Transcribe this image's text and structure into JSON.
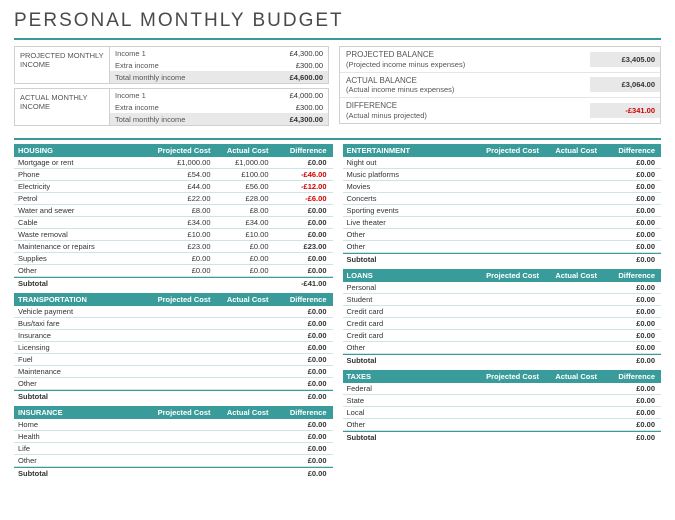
{
  "title": "PERSONAL MONTHLY BUDGET",
  "colors": {
    "accent": "#3a9b9b",
    "negative": "#d00000",
    "shade": "#e8e8e8"
  },
  "projected_income": {
    "label": "PROJECTED MONTHLY INCOME",
    "rows": [
      {
        "k": "Income 1",
        "v": "£4,300.00"
      },
      {
        "k": "Extra income",
        "v": "£300.00"
      }
    ],
    "total": {
      "k": "Total monthly income",
      "v": "£4,600.00"
    }
  },
  "actual_income": {
    "label": "ACTUAL MONTHLY INCOME",
    "rows": [
      {
        "k": "Income 1",
        "v": "£4,000.00"
      },
      {
        "k": "Extra income",
        "v": "£300.00"
      }
    ],
    "total": {
      "k": "Total monthly income",
      "v": "£4,300.00"
    }
  },
  "balances": [
    {
      "title": "PROJECTED BALANCE",
      "sub": "(Projected income minus expenses)",
      "value": "£3,405.00",
      "neg": false
    },
    {
      "title": "ACTUAL BALANCE",
      "sub": "(Actual income minus expenses)",
      "value": "£3,064.00",
      "neg": false
    },
    {
      "title": "DIFFERENCE",
      "sub": "(Actual minus projected)",
      "value": "-£341.00",
      "neg": true
    }
  ],
  "col_headers": {
    "proj": "Projected Cost",
    "act": "Actual Cost",
    "diff": "Difference"
  },
  "left_sections": [
    {
      "name": "HOUSING",
      "rows": [
        {
          "n": "Mortgage or rent",
          "p": "£1,000.00",
          "a": "£1,000.00",
          "d": "£0.00"
        },
        {
          "n": "Phone",
          "p": "£54.00",
          "a": "£100.00",
          "d": "-£46.00",
          "neg": true
        },
        {
          "n": "Electricity",
          "p": "£44.00",
          "a": "£56.00",
          "d": "-£12.00",
          "neg": true
        },
        {
          "n": "Petrol",
          "p": "£22.00",
          "a": "£28.00",
          "d": "-£6.00",
          "neg": true
        },
        {
          "n": "Water and sewer",
          "p": "£8.00",
          "a": "£8.00",
          "d": "£0.00"
        },
        {
          "n": "Cable",
          "p": "£34.00",
          "a": "£34.00",
          "d": "£0.00"
        },
        {
          "n": "Waste removal",
          "p": "£10.00",
          "a": "£10.00",
          "d": "£0.00"
        },
        {
          "n": "Maintenance or repairs",
          "p": "£23.00",
          "a": "£0.00",
          "d": "£23.00"
        },
        {
          "n": "Supplies",
          "p": "£0.00",
          "a": "£0.00",
          "d": "£0.00"
        },
        {
          "n": "Other",
          "p": "£0.00",
          "a": "£0.00",
          "d": "£0.00"
        }
      ],
      "subtotal": {
        "n": "Subtotal",
        "d": "-£41.00"
      }
    },
    {
      "name": "TRANSPORTATION",
      "rows": [
        {
          "n": "Vehicle payment",
          "p": "",
          "a": "",
          "d": "£0.00"
        },
        {
          "n": "Bus/taxi fare",
          "p": "",
          "a": "",
          "d": "£0.00"
        },
        {
          "n": "Insurance",
          "p": "",
          "a": "",
          "d": "£0.00"
        },
        {
          "n": "Licensing",
          "p": "",
          "a": "",
          "d": "£0.00"
        },
        {
          "n": "Fuel",
          "p": "",
          "a": "",
          "d": "£0.00"
        },
        {
          "n": "Maintenance",
          "p": "",
          "a": "",
          "d": "£0.00"
        },
        {
          "n": "Other",
          "p": "",
          "a": "",
          "d": "£0.00"
        }
      ],
      "subtotal": {
        "n": "Subtotal",
        "d": "£0.00"
      }
    },
    {
      "name": "INSURANCE",
      "rows": [
        {
          "n": "Home",
          "p": "",
          "a": "",
          "d": "£0.00"
        },
        {
          "n": "Health",
          "p": "",
          "a": "",
          "d": "£0.00"
        },
        {
          "n": "Life",
          "p": "",
          "a": "",
          "d": "£0.00"
        },
        {
          "n": "Other",
          "p": "",
          "a": "",
          "d": "£0.00"
        }
      ],
      "subtotal": {
        "n": "Subtotal",
        "d": "£0.00"
      }
    }
  ],
  "right_sections": [
    {
      "name": "ENTERTAINMENT",
      "rows": [
        {
          "n": "Night out",
          "p": "",
          "a": "",
          "d": "£0.00"
        },
        {
          "n": "Music platforms",
          "p": "",
          "a": "",
          "d": "£0.00"
        },
        {
          "n": "Movies",
          "p": "",
          "a": "",
          "d": "£0.00"
        },
        {
          "n": "Concerts",
          "p": "",
          "a": "",
          "d": "£0.00"
        },
        {
          "n": "Sporting events",
          "p": "",
          "a": "",
          "d": "£0.00"
        },
        {
          "n": "Live theater",
          "p": "",
          "a": "",
          "d": "£0.00"
        },
        {
          "n": "Other",
          "p": "",
          "a": "",
          "d": "£0.00"
        },
        {
          "n": "Other",
          "p": "",
          "a": "",
          "d": "£0.00"
        }
      ],
      "subtotal": {
        "n": "Subtotal",
        "d": "£0.00"
      }
    },
    {
      "name": "LOANS",
      "rows": [
        {
          "n": "Personal",
          "p": "",
          "a": "",
          "d": "£0.00"
        },
        {
          "n": "Student",
          "p": "",
          "a": "",
          "d": "£0.00"
        },
        {
          "n": "Credit card",
          "p": "",
          "a": "",
          "d": "£0.00"
        },
        {
          "n": "Credit card",
          "p": "",
          "a": "",
          "d": "£0.00"
        },
        {
          "n": "Credit card",
          "p": "",
          "a": "",
          "d": "£0.00"
        },
        {
          "n": "Other",
          "p": "",
          "a": "",
          "d": "£0.00"
        }
      ],
      "subtotal": {
        "n": "Subtotal",
        "d": "£0.00"
      }
    },
    {
      "name": "TAXES",
      "rows": [
        {
          "n": "Federal",
          "p": "",
          "a": "",
          "d": "£0.00"
        },
        {
          "n": "State",
          "p": "",
          "a": "",
          "d": "£0.00"
        },
        {
          "n": "Local",
          "p": "",
          "a": "",
          "d": "£0.00"
        },
        {
          "n": "Other",
          "p": "",
          "a": "",
          "d": "£0.00"
        }
      ],
      "subtotal": {
        "n": "Subtotal",
        "d": "£0.00"
      }
    }
  ]
}
